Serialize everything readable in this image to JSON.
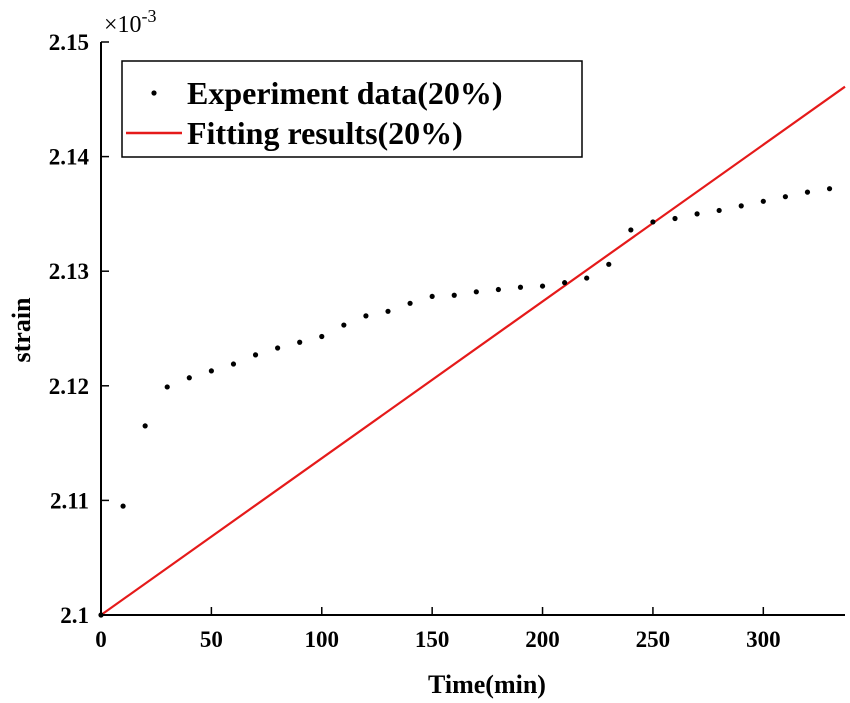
{
  "chart_data": {
    "type": "scatter",
    "xlabel": "Time(min)",
    "ylabel": "strain",
    "xlim": [
      0,
      337
    ],
    "ylim": [
      2.1,
      2.15
    ],
    "y_exponent_label": {
      "base": "×10",
      "exp": "-3"
    },
    "x_ticks": [
      0,
      50,
      100,
      150,
      200,
      250,
      300
    ],
    "x_tick_labels": [
      "0",
      "50",
      "100",
      "150",
      "200",
      "250",
      "300"
    ],
    "y_ticks": [
      2.1,
      2.11,
      2.12,
      2.13,
      2.14,
      2.15
    ],
    "y_tick_labels": [
      "2.1",
      "2.11",
      "2.12",
      "2.13",
      "2.14",
      "2.15"
    ],
    "legend_position": "top-left",
    "series": [
      {
        "name": "Experiment data(20%)",
        "kind": "scatter",
        "color": "#000000",
        "x": [
          0,
          10,
          20,
          30,
          40,
          50,
          60,
          70,
          80,
          90,
          100,
          110,
          120,
          130,
          140,
          150,
          160,
          170,
          180,
          190,
          200,
          210,
          220,
          230,
          240,
          250,
          260,
          270,
          280,
          290,
          300,
          310,
          320,
          330
        ],
        "y": [
          2.1,
          2.1095,
          2.1165,
          2.1199,
          2.1207,
          2.1213,
          2.1219,
          2.1227,
          2.1233,
          2.1238,
          2.1243,
          2.1253,
          2.1261,
          2.1265,
          2.1272,
          2.1278,
          2.1279,
          2.1282,
          2.1284,
          2.1286,
          2.1287,
          2.129,
          2.1294,
          2.1306,
          2.1336,
          2.1343,
          2.1346,
          2.135,
          2.1353,
          2.1357,
          2.1361,
          2.1365,
          2.1369,
          2.1372
        ]
      },
      {
        "name": "Fitting results(20%)",
        "kind": "line",
        "color": "#e51a1a",
        "x": [
          0,
          337
        ],
        "y": [
          2.1,
          2.1461
        ]
      }
    ]
  }
}
